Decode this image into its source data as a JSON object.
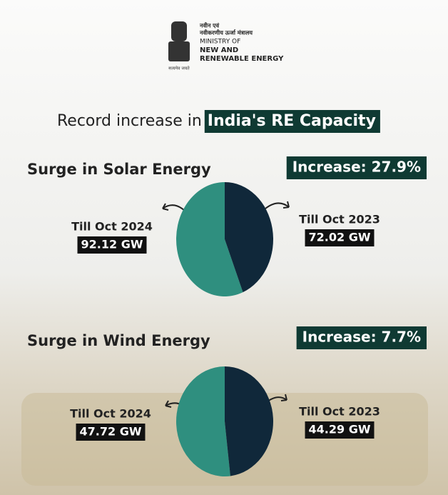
{
  "header": {
    "emblem_caption": "सत्यमेव जयते",
    "hindi": [
      "नवीन एवं",
      "नवीकरणीय ऊर्जा मंत्रालय"
    ],
    "english": [
      "MINISTRY OF",
      "NEW AND",
      "RENEWABLE ENERGY"
    ]
  },
  "title": {
    "text": "Record increase in",
    "highlight": "India's RE Capacity"
  },
  "chart_data": [
    {
      "type": "pie",
      "title": "Surge in Solar Energy",
      "annotation": "Increase: 27.9%",
      "categories": [
        "Till Oct 2024",
        "Till Oct 2023"
      ],
      "values": [
        92.12,
        72.02
      ],
      "value_labels": [
        "92.12 GW",
        "72.02 GW"
      ],
      "colors": [
        "#2f8f7f",
        "#10283a"
      ]
    },
    {
      "type": "pie",
      "title": "Surge in Wind Energy",
      "annotation": "Increase: 7.7%",
      "categories": [
        "Till Oct 2024",
        "Till Oct 2023"
      ],
      "values": [
        47.72,
        44.29
      ],
      "value_labels": [
        "47.72 GW",
        "44.29 GW"
      ],
      "colors": [
        "#2f8f7f",
        "#10283a"
      ]
    }
  ]
}
